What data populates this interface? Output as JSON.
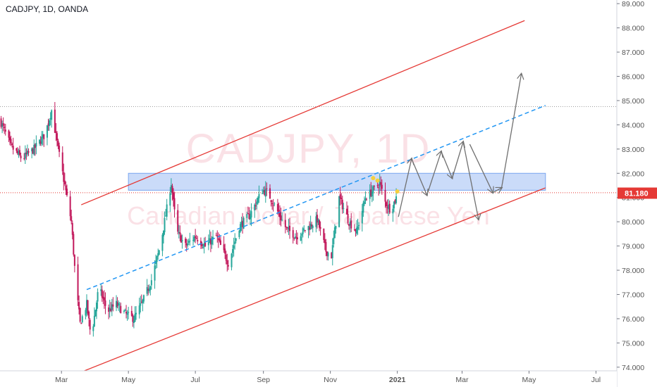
{
  "header": {
    "title": "CADJPY, 1D, OANDA"
  },
  "watermark": {
    "symbol": "CADJPY, 1D",
    "description": "Canadian Dollar / Japanese Yen"
  },
  "chart_data": {
    "type": "candlestick",
    "symbol": "CADJPY",
    "interval": "1D",
    "source": "OANDA",
    "ylim": [
      73.85,
      89.15
    ],
    "y_ticks": [
      74.0,
      75.0,
      76.0,
      77.0,
      78.0,
      79.0,
      80.0,
      81.0,
      82.0,
      83.0,
      84.0,
      85.0,
      86.0,
      87.0,
      88.0,
      89.0
    ],
    "y_tick_labels": [
      "74.000",
      "75.000",
      "76.000",
      "77.000",
      "78.000",
      "79.000",
      "80.000",
      "81.000",
      "82.000",
      "83.000",
      "84.000",
      "85.000",
      "86.000",
      "87.000",
      "88.000",
      "89.000"
    ],
    "x_range": [
      "2020-01-05",
      "2021-07-20"
    ],
    "x_ticks": [
      {
        "date": "2020-03-01",
        "label": "Mar"
      },
      {
        "date": "2020-05-01",
        "label": "May"
      },
      {
        "date": "2020-07-01",
        "label": "Jul"
      },
      {
        "date": "2020-09-01",
        "label": "Sep"
      },
      {
        "date": "2020-11-01",
        "label": "Nov"
      },
      {
        "date": "2021-01-01",
        "label": "2021"
      },
      {
        "date": "2021-03-01",
        "label": "Mar"
      },
      {
        "date": "2021-05-01",
        "label": "May"
      },
      {
        "date": "2021-07-01",
        "label": "Jul"
      }
    ],
    "last_price": {
      "value": 81.18,
      "label": "81.180"
    },
    "colors": {
      "up": "#26a69a",
      "down": "#c2185b",
      "channel": "#e53935",
      "trend": "#2196f3",
      "zone": "#7aa6f0",
      "arrow": "#707070",
      "last_price": "#e53935"
    },
    "price_path": [
      [
        "2020-01-05",
        84.2
      ],
      [
        "2020-01-15",
        83.1
      ],
      [
        "2020-01-25",
        82.6
      ],
      [
        "2020-02-05",
        83.0
      ],
      [
        "2020-02-15",
        83.6
      ],
      [
        "2020-02-21",
        84.6
      ],
      [
        "2020-02-27",
        83.0
      ],
      [
        "2020-03-04",
        81.5
      ],
      [
        "2020-03-10",
        80.0
      ],
      [
        "2020-03-14",
        77.5
      ],
      [
        "2020-03-18",
        75.8
      ],
      [
        "2020-03-24",
        76.6
      ],
      [
        "2020-03-28",
        75.2
      ],
      [
        "2020-04-04",
        77.3
      ],
      [
        "2020-04-12",
        76.3
      ],
      [
        "2020-04-20",
        76.6
      ],
      [
        "2020-04-28",
        76.2
      ],
      [
        "2020-05-06",
        76.0
      ],
      [
        "2020-05-14",
        76.7
      ],
      [
        "2020-05-22",
        77.6
      ],
      [
        "2020-05-30",
        79.0
      ],
      [
        "2020-06-06",
        80.8
      ],
      [
        "2020-06-09",
        81.6
      ],
      [
        "2020-06-14",
        79.6
      ],
      [
        "2020-06-22",
        79.0
      ],
      [
        "2020-07-01",
        79.4
      ],
      [
        "2020-07-10",
        79.0
      ],
      [
        "2020-07-20",
        79.4
      ],
      [
        "2020-07-31",
        78.3
      ],
      [
        "2020-08-10",
        79.8
      ],
      [
        "2020-08-20",
        80.3
      ],
      [
        "2020-08-31",
        81.3
      ],
      [
        "2020-09-05",
        81.2
      ],
      [
        "2020-09-12",
        80.6
      ],
      [
        "2020-09-22",
        79.7
      ],
      [
        "2020-10-01",
        79.4
      ],
      [
        "2020-10-10",
        79.7
      ],
      [
        "2020-10-20",
        80.1
      ],
      [
        "2020-10-28",
        78.8
      ],
      [
        "2020-11-02",
        78.6
      ],
      [
        "2020-11-09",
        81.0
      ],
      [
        "2020-11-18",
        80.0
      ],
      [
        "2020-11-25",
        79.6
      ],
      [
        "2020-12-03",
        81.0
      ],
      [
        "2020-12-10",
        81.3
      ],
      [
        "2020-12-16",
        81.6
      ],
      [
        "2020-12-21",
        80.8
      ],
      [
        "2020-12-26",
        80.5
      ],
      [
        "2021-01-01",
        81.1
      ]
    ],
    "channel": {
      "upper": [
        [
          "2020-03-19",
          80.7
        ],
        [
          "2021-04-27",
          88.3
        ]
      ],
      "lower": [
        [
          "2020-03-19",
          73.8
        ],
        [
          "2021-05-16",
          81.4
        ]
      ]
    },
    "trendline_dashed": [
      [
        "2020-03-24",
        77.2
      ],
      [
        "2021-05-16",
        84.8
      ]
    ],
    "resistance_zone": {
      "from": "2020-05-01",
      "to": "2021-05-16",
      "low": 81.3,
      "high": 82.0
    },
    "horizontal_lines": [
      {
        "value": 84.75,
        "color": "#9e9e9e",
        "style": "dotted"
      },
      {
        "value": 81.2,
        "color": "#e53935",
        "style": "dotted"
      }
    ],
    "markers": [
      {
        "date": "2020-12-10",
        "value": 81.8
      },
      {
        "date": "2020-12-14",
        "value": 81.7
      },
      {
        "date": "2021-01-01",
        "value": 81.25
      }
    ],
    "projection_path": [
      [
        "2021-01-02",
        80.2
      ],
      [
        "2021-01-14",
        82.6
      ],
      [
        "2021-01-28",
        81.1
      ],
      [
        "2021-02-10",
        82.9
      ],
      [
        "2021-02-20",
        81.8
      ],
      [
        "2021-03-02",
        83.3
      ],
      [
        "2021-03-16",
        80.1
      ]
    ],
    "projection_path_2": [
      [
        "2021-03-08",
        83.2
      ],
      [
        "2021-03-29",
        81.2
      ],
      [
        "2021-04-06",
        81.4
      ],
      [
        "2021-04-24",
        86.1
      ]
    ]
  }
}
